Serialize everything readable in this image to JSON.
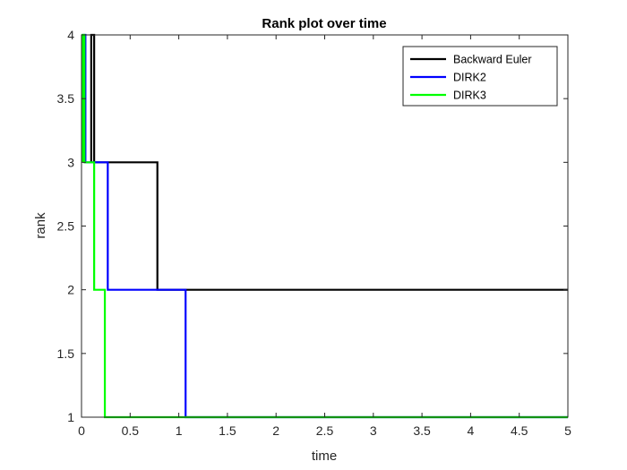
{
  "chart_data": {
    "type": "line",
    "title": "Rank plot over time",
    "xlabel": "time",
    "ylabel": "rank",
    "xlim": [
      0,
      5
    ],
    "ylim": [
      1,
      4
    ],
    "xticks": [
      0,
      0.5,
      1,
      1.5,
      2,
      2.5,
      3,
      3.5,
      4,
      4.5,
      5
    ],
    "yticks": [
      1,
      1.5,
      2,
      2.5,
      3,
      3.5,
      4
    ],
    "xtick_labels": [
      "0",
      "0.5",
      "1",
      "1.5",
      "2",
      "2.5",
      "3",
      "3.5",
      "4",
      "4.5",
      "5"
    ],
    "ytick_labels": [
      "1",
      "1.5",
      "2",
      "2.5",
      "3",
      "3.5",
      "4"
    ],
    "grid": false,
    "legend_position": "top-right",
    "series": [
      {
        "name": "Backward Euler",
        "color": "#000000",
        "x": [
          0.1,
          0.1,
          0.13,
          0.13,
          0.78,
          0.78,
          5
        ],
        "y": [
          3,
          4,
          4,
          3,
          3,
          2,
          2
        ]
      },
      {
        "name": "DIRK2",
        "color": "#0000FF",
        "x": [
          0.02,
          0.02,
          0.04,
          0.04,
          0.27,
          0.27,
          1.07,
          1.07,
          5
        ],
        "y": [
          3,
          4,
          4,
          3,
          3,
          2,
          2,
          1,
          1
        ]
      },
      {
        "name": "DIRK3",
        "color": "#00FF00",
        "x": [
          0.01,
          0.01,
          0.03,
          0.03,
          0.13,
          0.13,
          0.24,
          0.24,
          5
        ],
        "y": [
          3,
          4,
          4,
          3,
          3,
          2,
          2,
          1,
          1
        ]
      }
    ]
  }
}
